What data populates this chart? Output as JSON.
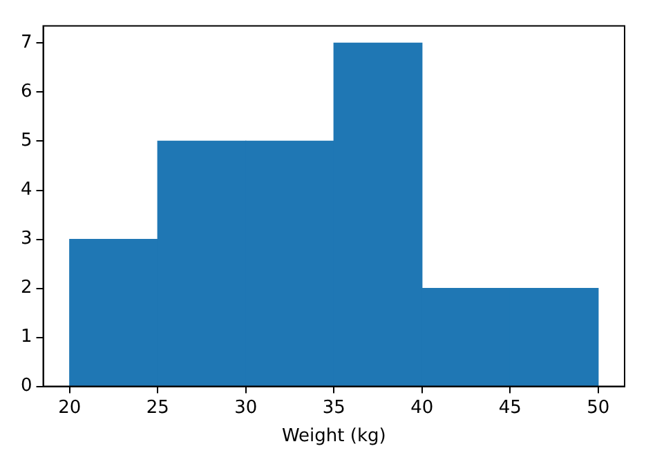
{
  "chart_data": {
    "type": "histogram",
    "xlabel": "Weight (kg)",
    "bins": [
      20,
      25,
      30,
      35,
      40,
      45,
      50
    ],
    "values": [
      3,
      5,
      5,
      7,
      2,
      2
    ],
    "color": "#1f77b4",
    "xlim": [
      18.5,
      51.5
    ],
    "xticks": [
      20,
      25,
      30,
      35,
      40,
      45,
      50
    ],
    "ylim": [
      0,
      7.35
    ],
    "yticks": [
      0,
      1,
      2,
      3,
      4,
      5,
      6,
      7
    ]
  }
}
